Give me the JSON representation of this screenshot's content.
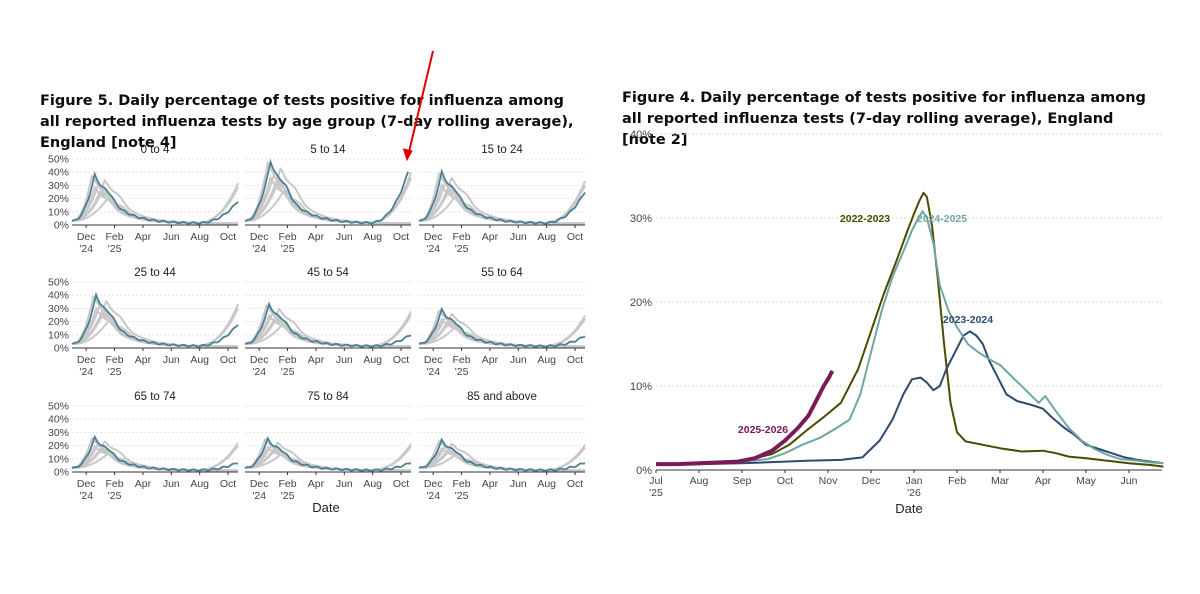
{
  "figure5": {
    "title": "Figure 5. Daily percentage of tests positive for influenza among all reported influenza tests by age group (7-day rolling average), England [note 4]"
  },
  "figure4": {
    "title": "Figure 4. Daily percentage of tests positive for influenza among all reported influenza tests (7-day rolling average), England [note 2]"
  },
  "annotation": {
    "arrow_color": "#e00000"
  },
  "chart_data": [
    {
      "type": "line",
      "title": "Figure 5. Daily percentage of tests positive for influenza among all reported influenza tests by age group (7-day rolling average), England [note 4]",
      "xlabel": "Date",
      "ylabel": "",
      "ylim": [
        0,
        50
      ],
      "yticks": [
        "0%",
        "10%",
        "20%",
        "30%",
        "40%",
        "50%"
      ],
      "xticks": [
        {
          "label": "Dec",
          "sub": "'24"
        },
        {
          "label": "Feb",
          "sub": "'25"
        },
        {
          "label": "Apr",
          "sub": ""
        },
        {
          "label": "Jun",
          "sub": ""
        },
        {
          "label": "Aug",
          "sub": ""
        },
        {
          "label": "Oct",
          "sub": ""
        }
      ],
      "x_months_range": [
        0,
        11.7
      ],
      "x_tick_positions": [
        1,
        3,
        5,
        7,
        9,
        11
      ],
      "highlight_color": "#4a7f96",
      "grey_color": "#c8c8c8",
      "panels": [
        {
          "name": "0 to 4",
          "peak": 38,
          "peak_month": 1.6,
          "tail": 17,
          "tail_month": 11.7
        },
        {
          "name": "5 to 14",
          "peak": 48,
          "peak_month": 1.8,
          "tail": 39,
          "tail_month": 11.5
        },
        {
          "name": "15 to 24",
          "peak": 40,
          "peak_month": 1.6,
          "tail": 24,
          "tail_month": 11.7
        },
        {
          "name": "25 to 44",
          "peak": 40,
          "peak_month": 1.7,
          "tail": 17,
          "tail_month": 11.7
        },
        {
          "name": "45 to 54",
          "peak": 33,
          "peak_month": 1.7,
          "tail": 9,
          "tail_month": 11.7
        },
        {
          "name": "55 to 64",
          "peak": 29,
          "peak_month": 1.6,
          "tail": 8,
          "tail_month": 11.7
        },
        {
          "name": "65 to 74",
          "peak": 26,
          "peak_month": 1.6,
          "tail": 6,
          "tail_month": 11.7
        },
        {
          "name": "75 to 84",
          "peak": 25,
          "peak_month": 1.6,
          "tail": 6,
          "tail_month": 11.7
        },
        {
          "name": "85 and above",
          "peak": 24,
          "peak_month": 1.6,
          "tail": 6,
          "tail_month": 11.7
        }
      ]
    },
    {
      "type": "line",
      "title": "Figure 4. Daily percentage of tests positive for influenza among all reported influenza tests (7-day rolling average), England [note 2]",
      "xlabel": "Date",
      "ylabel": "",
      "ylim": [
        0,
        40
      ],
      "yticks": [
        "0%",
        "10%",
        "20%",
        "30%",
        "40%"
      ],
      "xticks": [
        {
          "label": "Jul",
          "sub": "'25"
        },
        {
          "label": "Aug",
          "sub": ""
        },
        {
          "label": "Sep",
          "sub": ""
        },
        {
          "label": "Oct",
          "sub": ""
        },
        {
          "label": "Nov",
          "sub": ""
        },
        {
          "label": "Dec",
          "sub": ""
        },
        {
          "label": "Jan",
          "sub": "'26"
        },
        {
          "label": "Feb",
          "sub": ""
        },
        {
          "label": "Mar",
          "sub": ""
        },
        {
          "label": "Apr",
          "sub": ""
        },
        {
          "label": "May",
          "sub": ""
        },
        {
          "label": "Jun",
          "sub": ""
        }
      ],
      "x_months_range": [
        0,
        11.8
      ],
      "series": [
        {
          "name": "2022-2023",
          "color": "#4a4a00",
          "width": 2,
          "points": [
            [
              0,
              0.7
            ],
            [
              1,
              0.7
            ],
            [
              1.8,
              1.0
            ],
            [
              2.3,
              1.4
            ],
            [
              2.7,
              1.9
            ],
            [
              3.1,
              3.0
            ],
            [
              3.5,
              4.7
            ],
            [
              3.9,
              6.3
            ],
            [
              4.3,
              8.0
            ],
            [
              4.7,
              12.0
            ],
            [
              5.0,
              16.5
            ],
            [
              5.3,
              21.0
            ],
            [
              5.6,
              25.0
            ],
            [
              5.85,
              28.5
            ],
            [
              6.0,
              30.5
            ],
            [
              6.12,
              32.0
            ],
            [
              6.22,
              33.0
            ],
            [
              6.3,
              32.5
            ],
            [
              6.42,
              29.0
            ],
            [
              6.55,
              23.0
            ],
            [
              6.7,
              15.0
            ],
            [
              6.85,
              8.0
            ],
            [
              7.0,
              4.5
            ],
            [
              7.2,
              3.4
            ],
            [
              7.6,
              3.0
            ],
            [
              8.0,
              2.6
            ],
            [
              8.5,
              2.2
            ],
            [
              9.0,
              2.3
            ],
            [
              9.3,
              2.0
            ],
            [
              9.6,
              1.6
            ],
            [
              10.0,
              1.4
            ],
            [
              10.5,
              1.1
            ],
            [
              11.0,
              0.8
            ],
            [
              11.5,
              0.6
            ],
            [
              11.8,
              0.4
            ]
          ]
        },
        {
          "name": "2023-2024",
          "color": "#2e4a6e",
          "width": 2,
          "points": [
            [
              0,
              0.7
            ],
            [
              1,
              0.7
            ],
            [
              2,
              0.8
            ],
            [
              3,
              1.0
            ],
            [
              3.5,
              1.1
            ],
            [
              4.3,
              1.2
            ],
            [
              4.8,
              1.5
            ],
            [
              5.2,
              3.5
            ],
            [
              5.5,
              6.0
            ],
            [
              5.75,
              9.0
            ],
            [
              5.95,
              10.8
            ],
            [
              6.15,
              11.0
            ],
            [
              6.3,
              10.4
            ],
            [
              6.45,
              9.5
            ],
            [
              6.6,
              10.0
            ],
            [
              6.75,
              12.0
            ],
            [
              6.95,
              14.0
            ],
            [
              7.15,
              16.0
            ],
            [
              7.3,
              16.5
            ],
            [
              7.45,
              16.0
            ],
            [
              7.6,
              15.0
            ],
            [
              7.75,
              13.0
            ],
            [
              7.95,
              11.0
            ],
            [
              8.15,
              9.0
            ],
            [
              8.4,
              8.2
            ],
            [
              8.7,
              7.8
            ],
            [
              9.0,
              7.3
            ],
            [
              9.2,
              6.3
            ],
            [
              9.5,
              5.0
            ],
            [
              9.7,
              4.3
            ],
            [
              10.0,
              3.0
            ],
            [
              10.3,
              2.5
            ],
            [
              10.6,
              2.0
            ],
            [
              10.9,
              1.5
            ],
            [
              11.2,
              1.2
            ],
            [
              11.5,
              1.0
            ],
            [
              11.8,
              0.8
            ]
          ]
        },
        {
          "name": "2024-2025",
          "color": "#6fa6a3",
          "width": 2,
          "points": [
            [
              0,
              0.7
            ],
            [
              1,
              0.8
            ],
            [
              2,
              1.0
            ],
            [
              2.6,
              1.3
            ],
            [
              3.0,
              2.0
            ],
            [
              3.4,
              3.0
            ],
            [
              3.8,
              3.8
            ],
            [
              4.2,
              5.0
            ],
            [
              4.5,
              6.0
            ],
            [
              4.75,
              9.0
            ],
            [
              5.0,
              14.0
            ],
            [
              5.25,
              19.0
            ],
            [
              5.5,
              23.0
            ],
            [
              5.75,
              26.0
            ],
            [
              5.95,
              28.5
            ],
            [
              6.1,
              30.0
            ],
            [
              6.2,
              30.8
            ],
            [
              6.3,
              30.0
            ],
            [
              6.45,
              27.0
            ],
            [
              6.6,
              22.0
            ],
            [
              6.8,
              19.0
            ],
            [
              7.0,
              17.0
            ],
            [
              7.25,
              15.0
            ],
            [
              7.5,
              14.0
            ],
            [
              7.75,
              13.2
            ],
            [
              8.0,
              12.5
            ],
            [
              8.3,
              11.0
            ],
            [
              8.6,
              9.5
            ],
            [
              8.9,
              8.0
            ],
            [
              9.05,
              8.8
            ],
            [
              9.3,
              7.0
            ],
            [
              9.6,
              5.0
            ],
            [
              9.9,
              3.5
            ],
            [
              10.2,
              2.5
            ],
            [
              10.5,
              1.8
            ],
            [
              10.8,
              1.3
            ],
            [
              11.2,
              1.1
            ],
            [
              11.5,
              0.9
            ],
            [
              11.8,
              0.8
            ]
          ]
        },
        {
          "name": "2025-2026",
          "color": "#7a1a57",
          "width": 4,
          "points": [
            [
              0,
              0.7
            ],
            [
              0.5,
              0.7
            ],
            [
              1,
              0.8
            ],
            [
              1.5,
              0.9
            ],
            [
              1.9,
              1.0
            ],
            [
              2.3,
              1.4
            ],
            [
              2.7,
              2.3
            ],
            [
              3.0,
              3.5
            ],
            [
              3.3,
              5.0
            ],
            [
              3.55,
              6.5
            ],
            [
              3.75,
              8.5
            ],
            [
              3.9,
              10.0
            ],
            [
              4.02,
              11.0
            ],
            [
              4.1,
              11.8
            ]
          ]
        }
      ]
    }
  ]
}
